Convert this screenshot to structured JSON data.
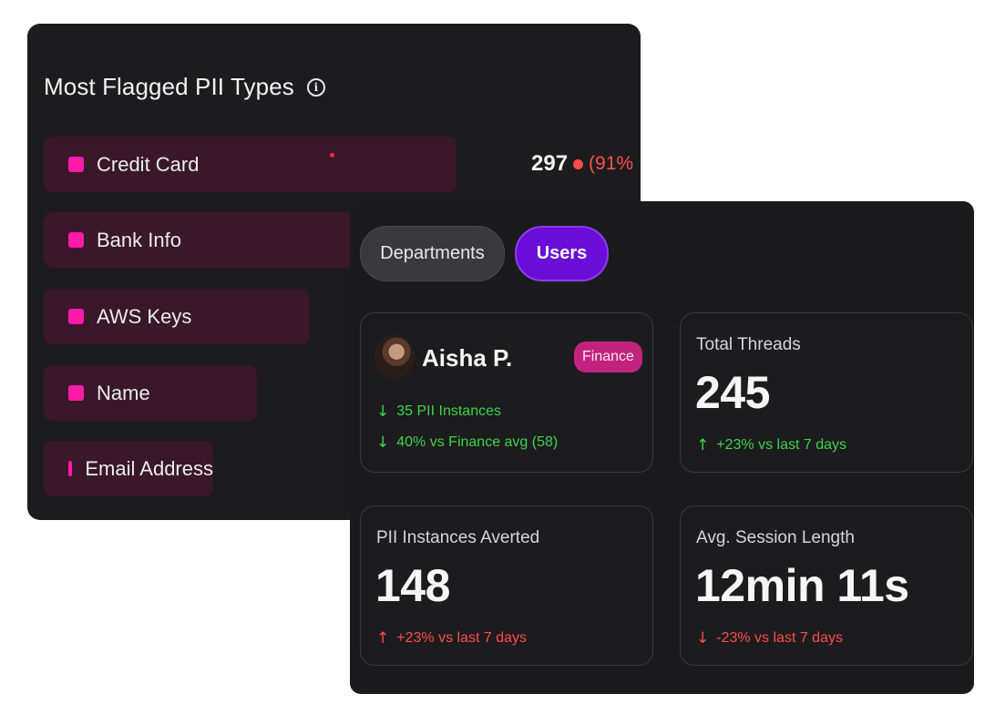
{
  "pii_panel": {
    "title": "Most Flagged PII Types",
    "bars": [
      {
        "label": "Credit Card",
        "share": 1.0
      },
      {
        "label": "Bank Info",
        "share": 0.8
      },
      {
        "label": "AWS Keys",
        "share": 0.645
      },
      {
        "label": "Name",
        "share": 0.51
      },
      {
        "label": "Email Address",
        "share": 0.41
      }
    ],
    "top_value": "297",
    "top_percent": "(91%",
    "accent_color": "#ff1aa8"
  },
  "tabs": [
    {
      "label": "Departments",
      "active": false
    },
    {
      "label": "Users",
      "active": true
    }
  ],
  "user_card": {
    "name": "Aisha P.",
    "department": "Finance",
    "stat1": "35 PII Instances",
    "stat2": "40% vs Finance avg (58)"
  },
  "metrics": {
    "threads": {
      "label": "Total Threads",
      "value": "245",
      "delta": "+23% vs last 7 days"
    },
    "averted": {
      "label": "PII Instances Averted",
      "value": "148",
      "delta": "+23% vs last 7 days"
    },
    "session": {
      "label": "Avg. Session Length",
      "value": "12min 11s",
      "delta": "-23% vs last 7 days"
    }
  },
  "icons": {
    "info": "info-circle-icon",
    "down_arrow": "arrow-down-icon",
    "up_arrow": "arrow-up-icon"
  }
}
